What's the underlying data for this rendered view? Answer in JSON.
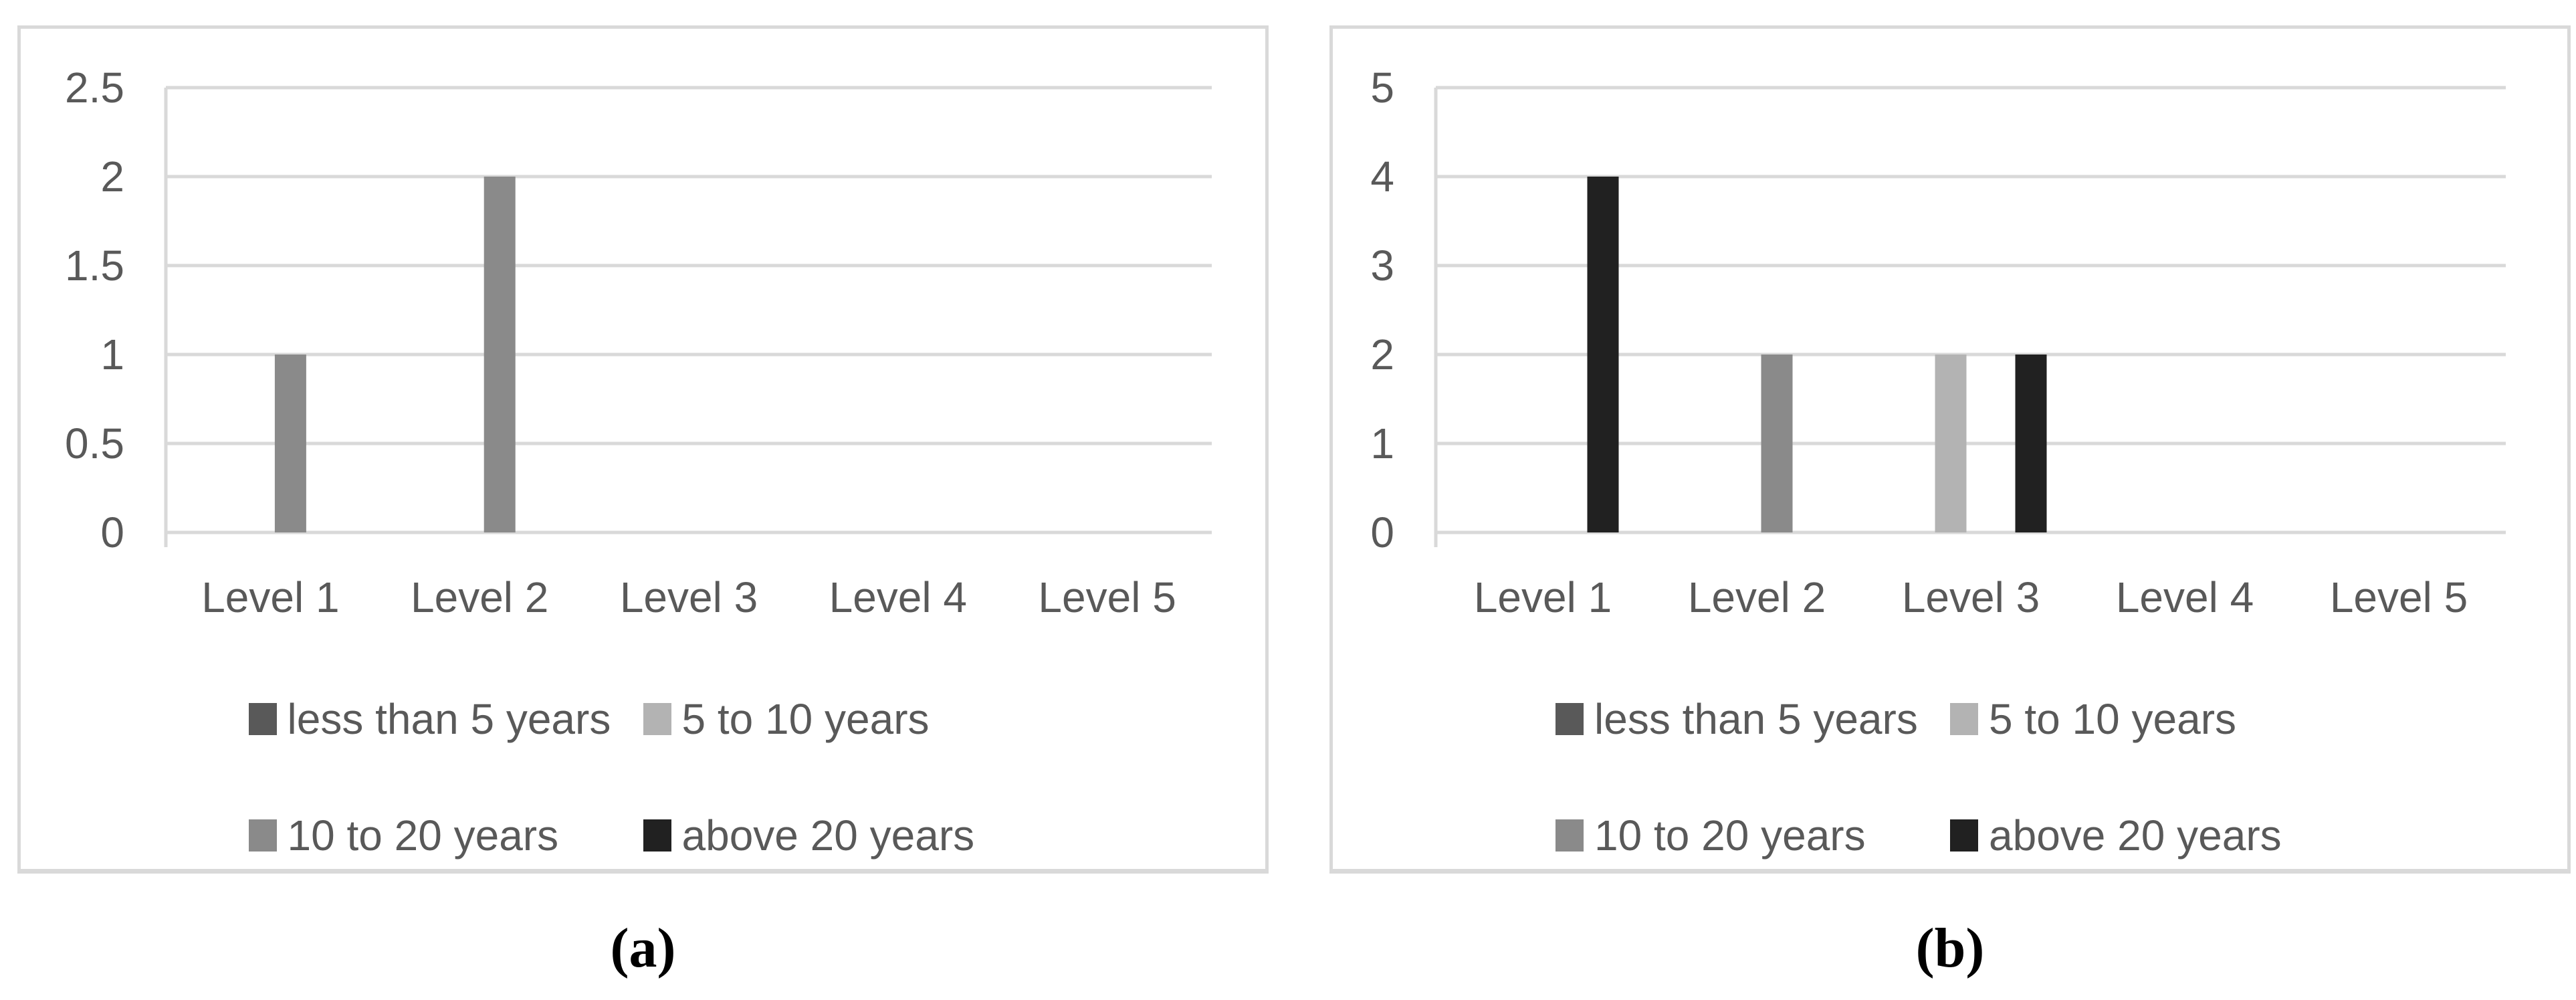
{
  "figure": {
    "panels": [
      {
        "caption": "(a)"
      },
      {
        "caption": "(b)"
      }
    ]
  },
  "colors": {
    "gridline": "#d9d9d9",
    "axis_line": "#d9d9d9",
    "axis_text": "#595959",
    "legend_text": "#595959",
    "panel_border": "#d9d9d9",
    "caption_text": "#000000",
    "background": "#ffffff"
  },
  "chart_data": [
    {
      "type": "bar",
      "title": "",
      "xlabel": "",
      "ylabel": "",
      "grid": true,
      "legend_position": "bottom",
      "categories": [
        "Level 1",
        "Level 2",
        "Level 3",
        "Level 4",
        "Level 5"
      ],
      "series": [
        {
          "name": "less than 5 years",
          "color": "#595959",
          "values": [
            0,
            0,
            0,
            0,
            0
          ]
        },
        {
          "name": "5 to 10 years",
          "color": "#b3b3b3",
          "values": [
            0,
            0,
            0,
            0,
            0
          ]
        },
        {
          "name": "10 to 20 years",
          "color": "#8a8a8a",
          "values": [
            1,
            2,
            0,
            0,
            0
          ]
        },
        {
          "name": "above 20 years",
          "color": "#212121",
          "values": [
            0,
            0,
            0,
            0,
            0
          ]
        }
      ],
      "ylim": [
        0,
        2.5
      ],
      "yticks": [
        0,
        0.5,
        1,
        1.5,
        2,
        2.5
      ]
    },
    {
      "type": "bar",
      "title": "",
      "xlabel": "",
      "ylabel": "",
      "grid": true,
      "legend_position": "bottom",
      "categories": [
        "Level 1",
        "Level 2",
        "Level 3",
        "Level 4",
        "Level 5"
      ],
      "series": [
        {
          "name": "less than 5 years",
          "color": "#595959",
          "values": [
            0,
            0,
            0,
            0,
            0
          ]
        },
        {
          "name": "5 to 10 years",
          "color": "#b3b3b3",
          "values": [
            0,
            0,
            2,
            0,
            0
          ]
        },
        {
          "name": "10 to 20 years",
          "color": "#8a8a8a",
          "values": [
            0,
            2,
            0,
            0,
            0
          ]
        },
        {
          "name": "above 20 years",
          "color": "#212121",
          "values": [
            4,
            0,
            2,
            0,
            0
          ]
        }
      ],
      "ylim": [
        0,
        5
      ],
      "yticks": [
        0,
        1,
        2,
        3,
        4,
        5
      ]
    }
  ]
}
